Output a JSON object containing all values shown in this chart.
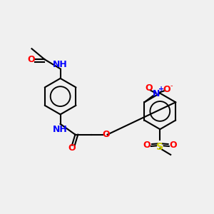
{
  "bg_color": "#f0f0f0",
  "atom_colors": {
    "C": "#000000",
    "H": "#4a9a9a",
    "N": "#0000ff",
    "O": "#ff0000",
    "S": "#cccc00",
    "bond": "#000000"
  },
  "fig_size": [
    3.0,
    3.0
  ],
  "dpi": 100
}
